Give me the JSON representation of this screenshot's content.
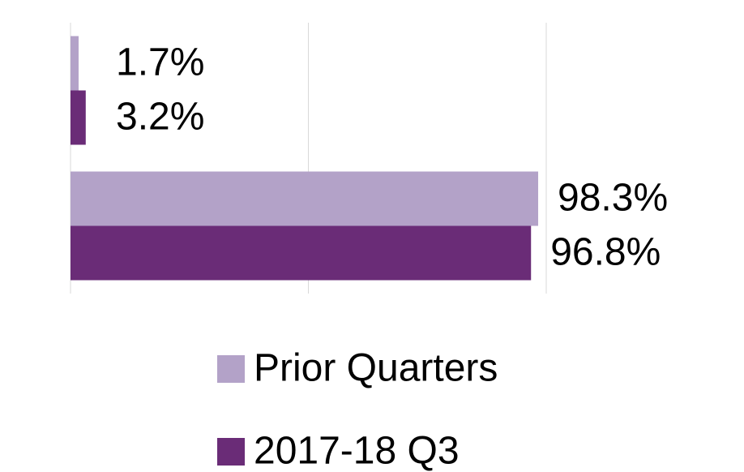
{
  "chart_data": {
    "type": "hbar",
    "categories": [
      null,
      null
    ],
    "series": [
      {
        "name": "Prior Quarters",
        "color": "#b3a2c8",
        "values": [
          1.7,
          98.3
        ],
        "value_labels": [
          "1.7%",
          "98.3%"
        ]
      },
      {
        "name": "2017-18 Q3",
        "color": "#6a2c77",
        "values": [
          3.2,
          96.8
        ],
        "value_labels": [
          "3.2%",
          "96.8%"
        ]
      }
    ],
    "xlim": [
      0,
      100
    ],
    "xticks": [
      0,
      50,
      100
    ],
    "grid": true
  }
}
